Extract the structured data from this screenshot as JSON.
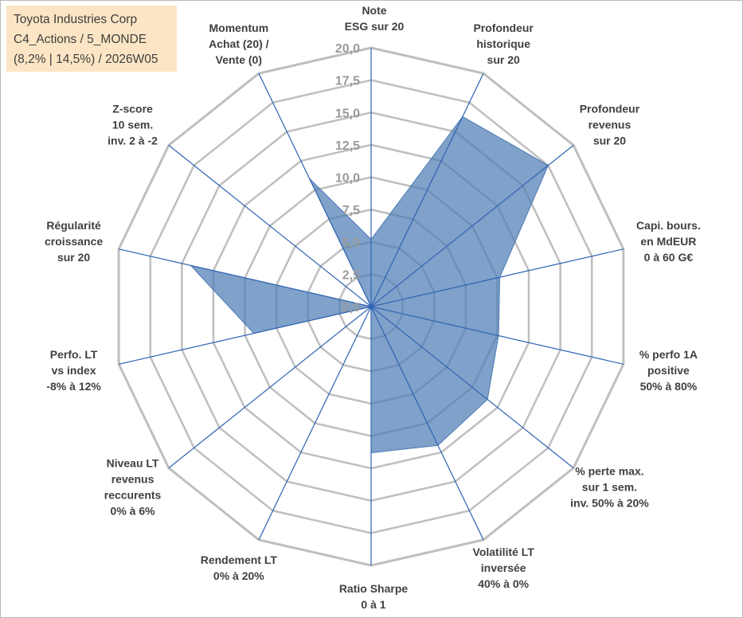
{
  "title_box": {
    "line1": "Toyota Industries Corp",
    "line2": "C4_Actions / 5_MONDE",
    "line3": "(8,2% | 14,5%) / 2026W05"
  },
  "colors": {
    "fill": "#4f7db4",
    "stroke": "#4a7ab3",
    "grid": "#bfbfbf",
    "axis": "#2e63b3",
    "title_bg": "#fbe5c4"
  },
  "chart_data": {
    "type": "radar",
    "title": "",
    "range": [
      0,
      20
    ],
    "ticks": [
      "0,0",
      "2,5",
      "5,0",
      "7,5",
      "10,0",
      "12,5",
      "15,0",
      "17,5",
      "20,0"
    ],
    "grid": true,
    "axes": [
      [
        "Note",
        "ESG sur 20"
      ],
      [
        "Profondeur",
        "historique",
        "sur 20"
      ],
      [
        "Profondeur",
        "revenus",
        "sur 20"
      ],
      [
        "Capi. bours.",
        "en MdEUR",
        "0 à 60 G€"
      ],
      [
        "% perfo 1A",
        "positive",
        "50% à 80%"
      ],
      [
        "% perte max.",
        "sur 1 sem.",
        "inv. 50% à 20%"
      ],
      [
        "Volatilité LT",
        "inversée",
        "40% à 0%"
      ],
      [
        "Ratio Sharpe",
        "0 à 1"
      ],
      [
        "Rendement LT",
        "0% à 20%"
      ],
      [
        "Niveau LT",
        "revenus",
        "reccurents",
        "0% à 6%"
      ],
      [
        "Perfo. LT",
        "vs index",
        "-8% à 12%"
      ],
      [
        "Régularité",
        "croissance",
        "sur 20"
      ],
      [
        "Z-score",
        "10 sem.",
        "inv. 2 à -2"
      ],
      [
        "Momentum",
        "Achat (20) /",
        "Vente (0)"
      ]
    ],
    "series": [
      {
        "values": [
          5.2,
          16.3,
          17.5,
          10.2,
          10.1,
          11.5,
          11.9,
          11.3,
          0.0,
          0.0,
          9.3,
          14.3,
          0.0,
          11.0
        ]
      }
    ]
  }
}
